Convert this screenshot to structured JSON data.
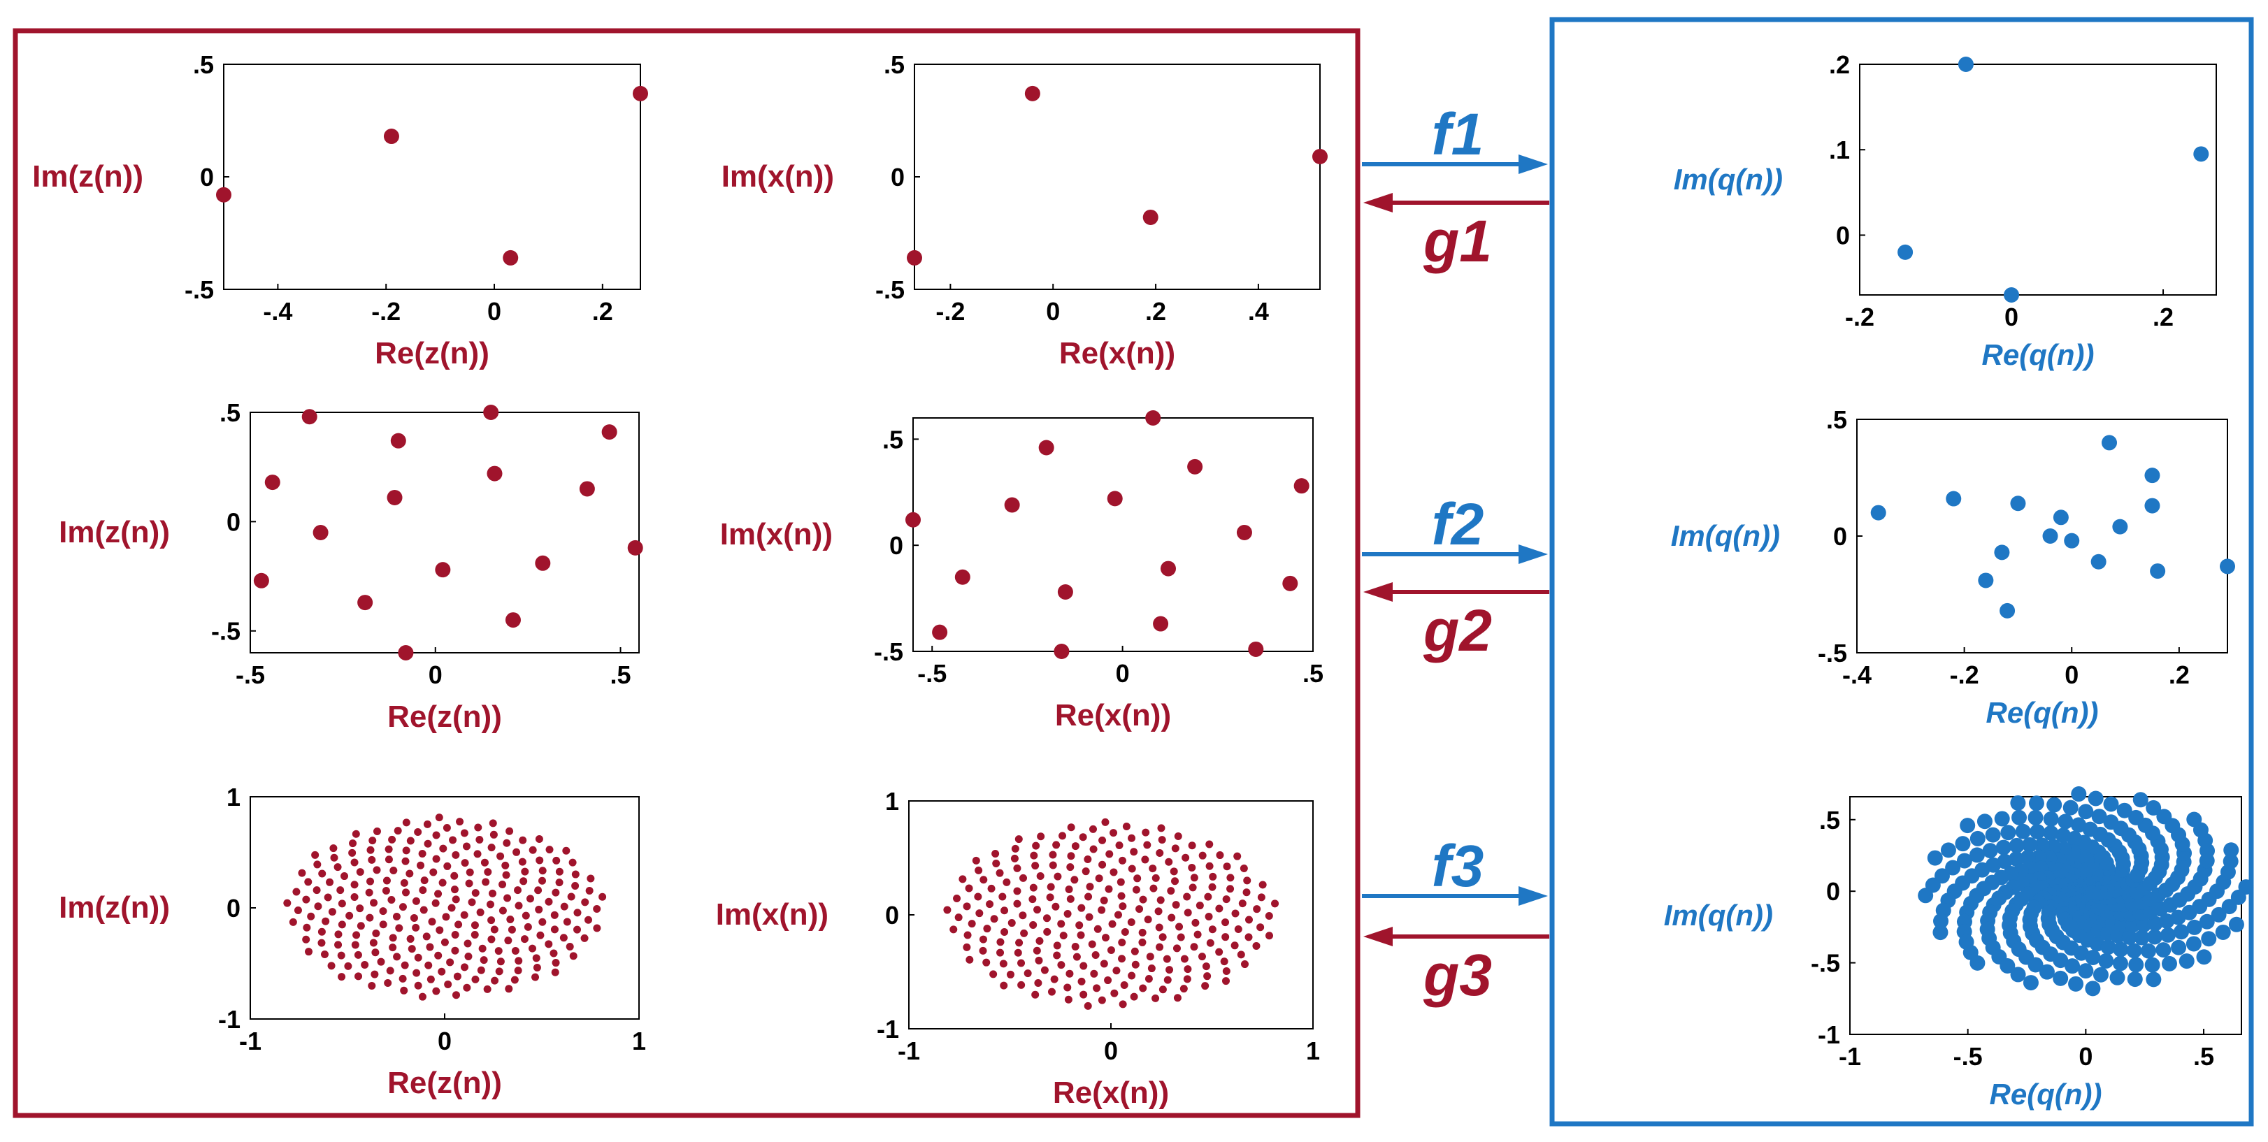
{
  "colors": {
    "red": "#a0142c",
    "blue": "#1f77c4",
    "axis": "#000000"
  },
  "maps": [
    {
      "f": "f1",
      "g": "g1"
    },
    {
      "f": "f2",
      "g": "g2"
    },
    {
      "f": "f3",
      "g": "g3"
    }
  ],
  "chart_data": [
    {
      "id": "z1",
      "type": "scatter",
      "xlabel": "Re(z(n))",
      "ylabel": "Im(z(n))",
      "xlim": [
        -0.5,
        0.27
      ],
      "ylim": [
        -0.5,
        0.5
      ],
      "xticks": [
        -0.4,
        -0.2,
        0,
        0.2
      ],
      "yticks": [
        -0.5,
        0,
        0.5
      ],
      "x": [
        -0.5,
        -0.19,
        0.03,
        0.27
      ],
      "y": [
        -0.08,
        0.18,
        -0.36,
        0.37
      ]
    },
    {
      "id": "x1",
      "type": "scatter",
      "xlabel": "Re(x(n))",
      "ylabel": "Im(x(n))",
      "xlim": [
        -0.27,
        0.52
      ],
      "ylim": [
        -0.5,
        0.5
      ],
      "xticks": [
        -0.2,
        0,
        0.2,
        0.4
      ],
      "yticks": [
        -0.5,
        0,
        0.5
      ],
      "x": [
        -0.27,
        -0.04,
        0.19,
        0.52
      ],
      "y": [
        -0.36,
        0.37,
        -0.18,
        0.09
      ]
    },
    {
      "id": "q1",
      "type": "scatter",
      "xlabel": "Re(q(n))",
      "ylabel": "Im(q(n))",
      "xlim": [
        -0.2,
        0.27
      ],
      "ylim": [
        -0.07,
        0.2
      ],
      "xticks": [
        -0.2,
        0,
        0.2
      ],
      "yticks": [
        0,
        0.1,
        0.2
      ],
      "x": [
        -0.14,
        -0.06,
        0.0,
        0.25
      ],
      "y": [
        -0.02,
        0.2,
        -0.07,
        0.095
      ]
    },
    {
      "id": "z2",
      "type": "scatter",
      "xlabel": "Re(z(n))",
      "ylabel": "Im(z(n))",
      "xlim": [
        -0.5,
        0.55
      ],
      "ylim": [
        -0.6,
        0.5
      ],
      "xticks": [
        -0.5,
        0,
        0.5
      ],
      "yticks": [
        -0.5,
        0,
        0.5
      ],
      "x": [
        -0.34,
        -0.1,
        0.15,
        0.47,
        -0.44,
        0.16,
        0.41,
        -0.11,
        -0.31,
        0.54,
        -0.47,
        0.02,
        0.29,
        -0.19,
        0.21,
        -0.08
      ],
      "y": [
        0.48,
        0.37,
        0.5,
        0.41,
        0.18,
        0.22,
        0.15,
        0.11,
        -0.05,
        -0.12,
        -0.27,
        -0.22,
        -0.19,
        -0.37,
        -0.45,
        -0.6
      ]
    },
    {
      "id": "x2",
      "type": "scatter",
      "xlabel": "Re(x(n))",
      "ylabel": "Im(x(n))",
      "xlim": [
        -0.55,
        0.5
      ],
      "ylim": [
        -0.5,
        0.6
      ],
      "xticks": [
        -0.5,
        0,
        0.5
      ],
      "yticks": [
        -0.5,
        0,
        0.5
      ],
      "x": [
        0.08,
        -0.2,
        0.19,
        -0.29,
        -0.02,
        0.47,
        -0.55,
        0.32,
        -0.42,
        0.12,
        -0.15,
        0.44,
        0.1,
        -0.48,
        -0.16,
        0.35
      ],
      "y": [
        0.6,
        0.46,
        0.37,
        0.19,
        0.22,
        0.28,
        0.12,
        0.06,
        -0.15,
        -0.11,
        -0.22,
        -0.18,
        -0.37,
        -0.41,
        -0.5,
        -0.49
      ]
    },
    {
      "id": "q2",
      "type": "scatter",
      "xlabel": "Re(q(n))",
      "ylabel": "Im(q(n))",
      "xlim": [
        -0.4,
        0.29
      ],
      "ylim": [
        -0.5,
        0.5
      ],
      "xticks": [
        -0.4,
        -0.2,
        0,
        0.2
      ],
      "yticks": [
        -0.5,
        0,
        0.5
      ],
      "x": [
        -0.36,
        -0.22,
        0.07,
        0.15,
        0.15,
        -0.1,
        -0.02,
        -0.04,
        0.0,
        0.09,
        -0.13,
        0.05,
        0.16,
        -0.16,
        0.29,
        -0.12
      ],
      "y": [
        0.1,
        0.16,
        0.4,
        0.26,
        0.13,
        0.14,
        0.08,
        0.0,
        -0.02,
        0.04,
        -0.07,
        -0.11,
        -0.15,
        -0.19,
        -0.13,
        -0.32
      ]
    },
    {
      "id": "z3",
      "type": "scatter",
      "xlabel": "Re(z(n))",
      "ylabel": "Im(z(n))",
      "xlim": [
        -1,
        1
      ],
      "ylim": [
        -1,
        1
      ],
      "xticks": [
        -1,
        0,
        1
      ],
      "yticks": [
        -1,
        0,
        1
      ],
      "generator": {
        "kind": "sunflower-disk",
        "count": 256,
        "rx": 0.82,
        "ry": 0.82
      }
    },
    {
      "id": "x3",
      "type": "scatter",
      "xlabel": "Re(x(n))",
      "ylabel": "Im(x(n))",
      "xlim": [
        -1,
        1
      ],
      "ylim": [
        -1,
        1
      ],
      "xticks": [
        -1,
        0,
        1
      ],
      "yticks": [
        -1,
        0,
        1
      ],
      "generator": {
        "kind": "sunflower-disk",
        "count": 256,
        "rx": 0.82,
        "ry": 0.82
      }
    },
    {
      "id": "q3",
      "type": "scatter",
      "xlabel": "Re(q(n))",
      "ylabel": "Im(q(n))",
      "xlim": [
        -1,
        0.66
      ],
      "ylim": [
        -1,
        0.66
      ],
      "xticks": [
        -1,
        -0.5,
        0,
        0.5
      ],
      "yticks": [
        -1,
        -0.5,
        0,
        0.5
      ],
      "generator": {
        "kind": "spiral-arms",
        "arms": 16,
        "per_arm": 22,
        "r_max": 0.68,
        "twist": 2.4
      }
    }
  ]
}
